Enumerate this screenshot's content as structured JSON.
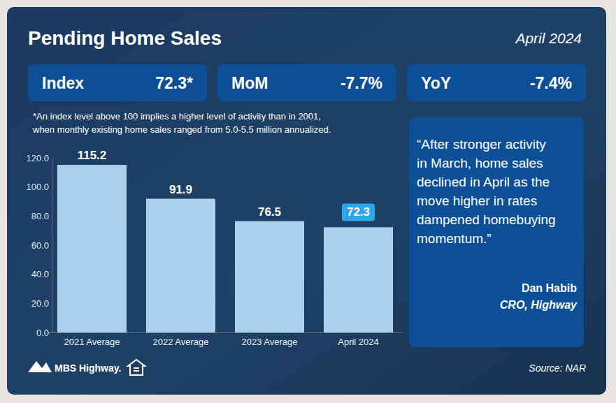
{
  "header": {
    "title": "Pending Home Sales",
    "date": "April 2024"
  },
  "stats": [
    {
      "label": "Index",
      "value": "72.3*"
    },
    {
      "label": "MoM",
      "value": "-7.7%"
    },
    {
      "label": "YoY",
      "value": "-7.4%"
    }
  ],
  "note": [
    "*An index level above 100 implies a higher level of activity than in 2001,",
    "when monthly existing home sales ranged from 5.0-5.5 million annualized."
  ],
  "quote": {
    "lines": [
      "“After stronger activity",
      "in March, home sales",
      "declined in April as the",
      "move higher in rates",
      "dampened homebuying",
      "momentum.”"
    ],
    "author": "Dan Habib",
    "role": "CRO, Highway"
  },
  "source": "Source: NAR",
  "logo": "MBS Highway.",
  "chart_data": {
    "type": "bar",
    "categories": [
      "2021 Average",
      "2022 Average",
      "2023 Average",
      "April 2024"
    ],
    "values": [
      115.2,
      91.9,
      76.5,
      72.3
    ],
    "color": "#a9d1ec",
    "ylim": [
      0,
      120
    ],
    "yticks": [
      {
        "value": 0,
        "label": "0.0"
      },
      {
        "value": 20,
        "label": "20.0"
      },
      {
        "value": 40,
        "label": "40.0"
      },
      {
        "value": 60,
        "label": "60.0"
      },
      {
        "value": 80,
        "label": "80.0"
      },
      {
        "value": 100,
        "label": "100.0"
      },
      {
        "value": 120,
        "label": "120.0"
      }
    ],
    "data_labels": true,
    "grid": false
  }
}
